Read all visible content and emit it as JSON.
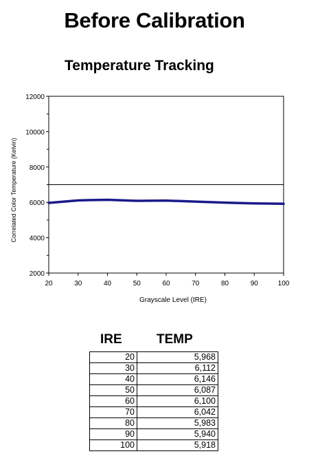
{
  "title": "Before Calibration",
  "chart_data": {
    "type": "line",
    "title": "Temperature Tracking",
    "xlabel": "Grayscale Level (IRE)",
    "ylabel": "Correlated Color Temperature (Kelvin)",
    "xlim": [
      20,
      100
    ],
    "ylim": [
      2000,
      12000
    ],
    "x_ticks": [
      20,
      30,
      40,
      50,
      60,
      70,
      80,
      90,
      100
    ],
    "y_ticks": [
      2000,
      4000,
      6000,
      8000,
      10000,
      12000
    ],
    "reference_line": 7000,
    "series_color": "#1a1a8a",
    "reference_color": "#000000",
    "series": [
      {
        "x": [
          20,
          30,
          40,
          50,
          60,
          70,
          80,
          90,
          100
        ],
        "values": [
          5968,
          6112,
          6146,
          6087,
          6100,
          6042,
          5983,
          5940,
          5918
        ]
      }
    ],
    "grid": false,
    "legend": "none"
  },
  "table": {
    "headers": [
      "IRE",
      "TEMP"
    ],
    "rows": [
      [
        "20",
        "5,968"
      ],
      [
        "30",
        "6,112"
      ],
      [
        "40",
        "6,146"
      ],
      [
        "50",
        "6,087"
      ],
      [
        "60",
        "6,100"
      ],
      [
        "70",
        "6,042"
      ],
      [
        "80",
        "5,983"
      ],
      [
        "90",
        "5,940"
      ],
      [
        "100",
        "5,918"
      ]
    ]
  }
}
